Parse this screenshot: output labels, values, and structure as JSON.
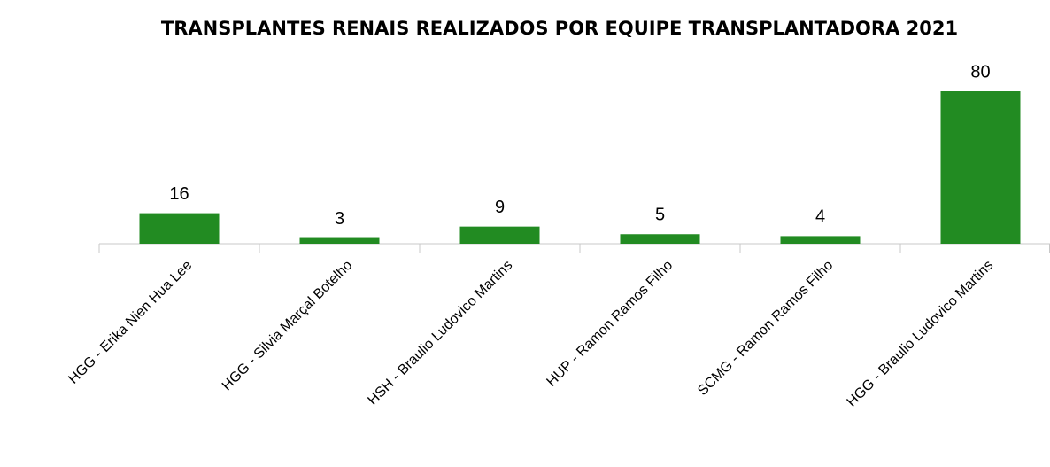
{
  "chart_data": {
    "type": "bar",
    "title": "TRANSPLANTES RENAIS REALIZADOS POR EQUIPE TRANSPLANTADORA 2021",
    "categories": [
      "HGG - Erika Nien Hua Lee",
      "HGG - Silvia Marçal Botelho",
      "HSH - Braulio Ludovico Martins",
      "HUP - Ramon Ramos Filho",
      "SCMG - Ramon Ramos Filho",
      "HGG - Braulio Ludovico Martins"
    ],
    "values": [
      16,
      3,
      9,
      5,
      4,
      80
    ],
    "color": "#228b22"
  }
}
